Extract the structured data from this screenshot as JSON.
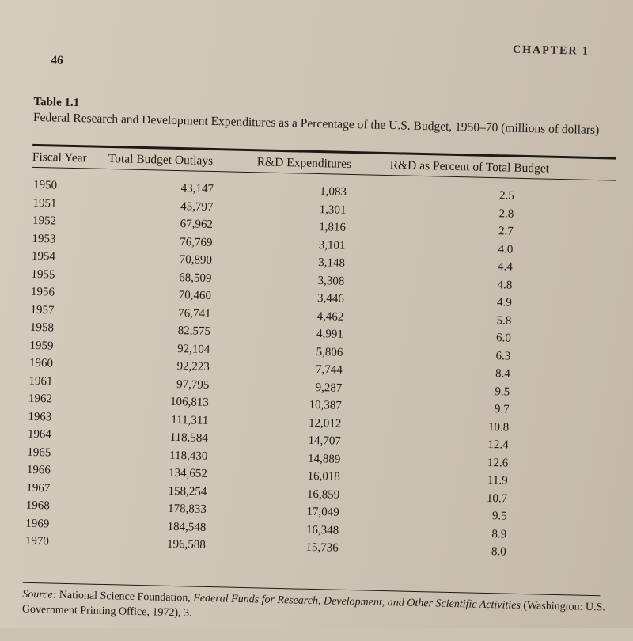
{
  "header": {
    "chapter": "CHAPTER 1",
    "page_number": "46"
  },
  "table": {
    "label": "Table 1.1",
    "title": "Federal Research and Development Expenditures as a Percentage of the U.S. Budget, 1950–70 (millions of dollars)",
    "columns": [
      "Fiscal Year",
      "Total Budget Outlays",
      "R&D Expenditures",
      "R&D as Percent of Total Budget"
    ],
    "rows": [
      {
        "year": "1950",
        "outlays": "43,147",
        "rd": "1,083",
        "pct": "2.5"
      },
      {
        "year": "1951",
        "outlays": "45,797",
        "rd": "1,301",
        "pct": "2.8"
      },
      {
        "year": "1952",
        "outlays": "67,962",
        "rd": "1,816",
        "pct": "2.7"
      },
      {
        "year": "1953",
        "outlays": "76,769",
        "rd": "3,101",
        "pct": "4.0"
      },
      {
        "year": "1954",
        "outlays": "70,890",
        "rd": "3,148",
        "pct": "4.4"
      },
      {
        "year": "1955",
        "outlays": "68,509",
        "rd": "3,308",
        "pct": "4.8"
      },
      {
        "year": "1956",
        "outlays": "70,460",
        "rd": "3,446",
        "pct": "4.9"
      },
      {
        "year": "1957",
        "outlays": "76,741",
        "rd": "4,462",
        "pct": "5.8"
      },
      {
        "year": "1958",
        "outlays": "82,575",
        "rd": "4,991",
        "pct": "6.0"
      },
      {
        "year": "1959",
        "outlays": "92,104",
        "rd": "5,806",
        "pct": "6.3"
      },
      {
        "year": "1960",
        "outlays": "92,223",
        "rd": "7,744",
        "pct": "8.4"
      },
      {
        "year": "1961",
        "outlays": "97,795",
        "rd": "9,287",
        "pct": "9.5"
      },
      {
        "year": "1962",
        "outlays": "106,813",
        "rd": "10,387",
        "pct": "9.7"
      },
      {
        "year": "1963",
        "outlays": "111,311",
        "rd": "12,012",
        "pct": "10.8"
      },
      {
        "year": "1964",
        "outlays": "118,584",
        "rd": "14,707",
        "pct": "12.4"
      },
      {
        "year": "1965",
        "outlays": "118,430",
        "rd": "14,889",
        "pct": "12.6"
      },
      {
        "year": "1966",
        "outlays": "134,652",
        "rd": "16,018",
        "pct": "11.9"
      },
      {
        "year": "1967",
        "outlays": "158,254",
        "rd": "16,859",
        "pct": "10.7"
      },
      {
        "year": "1968",
        "outlays": "178,833",
        "rd": "17,049",
        "pct": "9.5"
      },
      {
        "year": "1969",
        "outlays": "184,548",
        "rd": "16,348",
        "pct": "8.9"
      },
      {
        "year": "1970",
        "outlays": "196,588",
        "rd": "15,736",
        "pct": "8.0"
      }
    ]
  },
  "source": {
    "intro": "Source:",
    "org": " National Science Foundation, ",
    "publication": "Federal Funds for Research, Development, and Other Scientific Activities",
    "rest": " (Washington: U.S. Government Printing Office, 1972), 3."
  }
}
